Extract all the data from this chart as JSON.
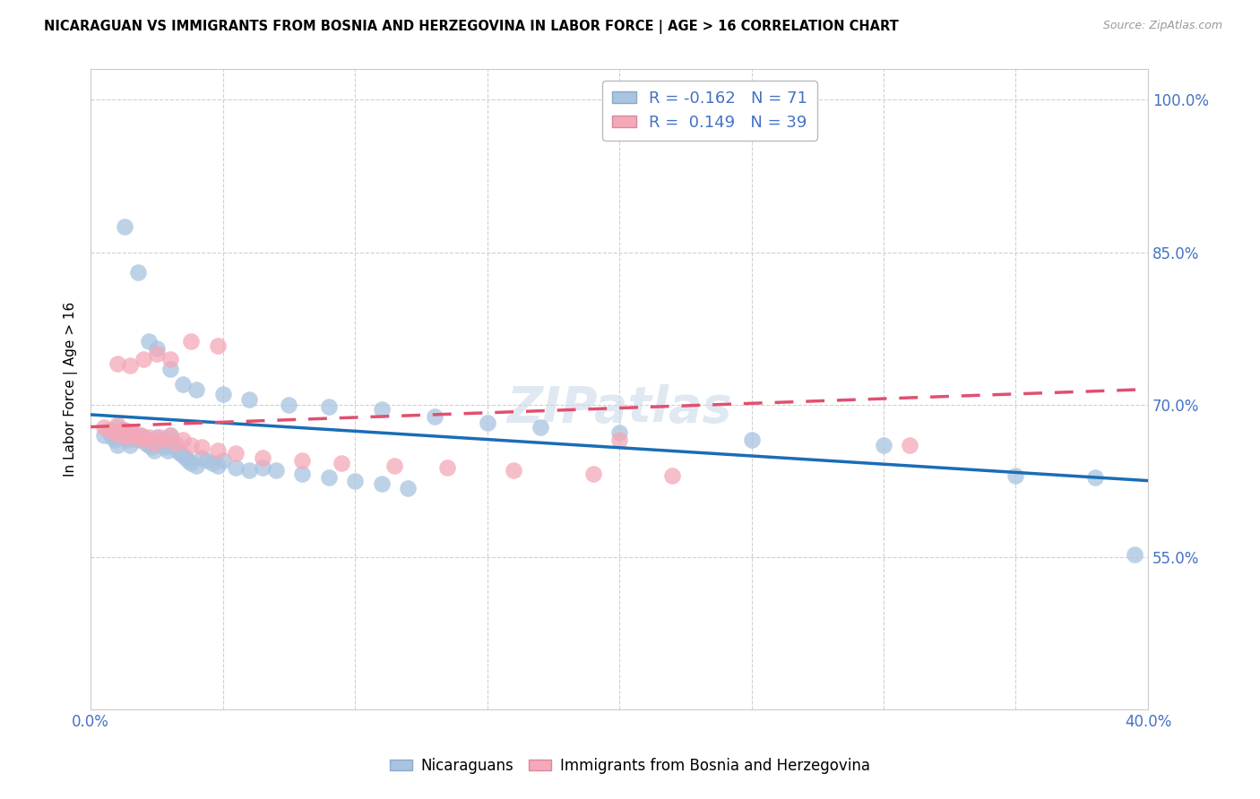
{
  "title": "NICARAGUAN VS IMMIGRANTS FROM BOSNIA AND HERZEGOVINA IN LABOR FORCE | AGE > 16 CORRELATION CHART",
  "source": "Source: ZipAtlas.com",
  "xlabel": "",
  "ylabel": "In Labor Force | Age > 16",
  "xlim": [
    0.0,
    0.4
  ],
  "ylim": [
    0.4,
    1.03
  ],
  "yticks": [
    0.55,
    0.7,
    0.85,
    1.0
  ],
  "ytick_labels": [
    "55.0%",
    "70.0%",
    "85.0%",
    "100.0%"
  ],
  "xticks": [
    0.0,
    0.05,
    0.1,
    0.15,
    0.2,
    0.25,
    0.3,
    0.35,
    0.4
  ],
  "xtick_labels": [
    "0.0%",
    "",
    "",
    "",
    "",
    "",
    "",
    "",
    "40.0%"
  ],
  "nicaraguan_color": "#a8c4e0",
  "bosnia_color": "#f4a8b8",
  "line_blue": "#1a6db5",
  "line_pink": "#e05070",
  "legend_R1": "-0.162",
  "legend_N1": "71",
  "legend_R2": " 0.149",
  "legend_N2": "39",
  "watermark": "ZIPatlas",
  "blue_line_x": [
    0.0,
    0.4
  ],
  "blue_line_y": [
    0.69,
    0.625
  ],
  "pink_line_x": [
    0.0,
    0.4
  ],
  "pink_line_y": [
    0.678,
    0.715
  ],
  "nicaraguan_points_x": [
    0.005,
    0.007,
    0.008,
    0.009,
    0.01,
    0.01,
    0.011,
    0.012,
    0.013,
    0.014,
    0.015,
    0.015,
    0.016,
    0.017,
    0.018,
    0.019,
    0.02,
    0.021,
    0.022,
    0.023,
    0.024,
    0.025,
    0.026,
    0.027,
    0.028,
    0.029,
    0.03,
    0.031,
    0.032,
    0.033,
    0.034,
    0.035,
    0.036,
    0.037,
    0.038,
    0.04,
    0.042,
    0.044,
    0.046,
    0.048,
    0.05,
    0.055,
    0.06,
    0.065,
    0.07,
    0.08,
    0.09,
    0.1,
    0.11,
    0.12,
    0.013,
    0.018,
    0.022,
    0.025,
    0.03,
    0.035,
    0.04,
    0.05,
    0.06,
    0.075,
    0.09,
    0.11,
    0.13,
    0.15,
    0.17,
    0.2,
    0.25,
    0.3,
    0.35,
    0.38,
    0.395
  ],
  "nicaraguan_points_y": [
    0.67,
    0.672,
    0.668,
    0.665,
    0.678,
    0.66,
    0.672,
    0.675,
    0.67,
    0.665,
    0.668,
    0.66,
    0.672,
    0.668,
    0.665,
    0.67,
    0.668,
    0.662,
    0.66,
    0.658,
    0.655,
    0.668,
    0.662,
    0.66,
    0.658,
    0.655,
    0.67,
    0.662,
    0.658,
    0.655,
    0.652,
    0.65,
    0.648,
    0.645,
    0.642,
    0.64,
    0.648,
    0.645,
    0.642,
    0.64,
    0.645,
    0.638,
    0.635,
    0.638,
    0.635,
    0.632,
    0.628,
    0.625,
    0.622,
    0.618,
    0.875,
    0.83,
    0.762,
    0.755,
    0.735,
    0.72,
    0.715,
    0.71,
    0.705,
    0.7,
    0.698,
    0.695,
    0.688,
    0.682,
    0.678,
    0.672,
    0.665,
    0.66,
    0.63,
    0.628,
    0.552
  ],
  "bosnia_points_x": [
    0.005,
    0.007,
    0.009,
    0.01,
    0.011,
    0.013,
    0.014,
    0.016,
    0.017,
    0.019,
    0.02,
    0.022,
    0.024,
    0.026,
    0.028,
    0.03,
    0.032,
    0.035,
    0.038,
    0.042,
    0.048,
    0.055,
    0.065,
    0.08,
    0.095,
    0.115,
    0.135,
    0.16,
    0.19,
    0.22,
    0.01,
    0.015,
    0.02,
    0.025,
    0.03,
    0.038,
    0.048,
    0.2,
    0.31
  ],
  "bosnia_points_y": [
    0.678,
    0.675,
    0.672,
    0.68,
    0.67,
    0.675,
    0.668,
    0.672,
    0.668,
    0.67,
    0.665,
    0.668,
    0.662,
    0.668,
    0.665,
    0.67,
    0.662,
    0.665,
    0.66,
    0.658,
    0.655,
    0.652,
    0.648,
    0.645,
    0.642,
    0.64,
    0.638,
    0.635,
    0.632,
    0.63,
    0.74,
    0.738,
    0.745,
    0.75,
    0.745,
    0.762,
    0.758,
    0.665,
    0.66
  ]
}
